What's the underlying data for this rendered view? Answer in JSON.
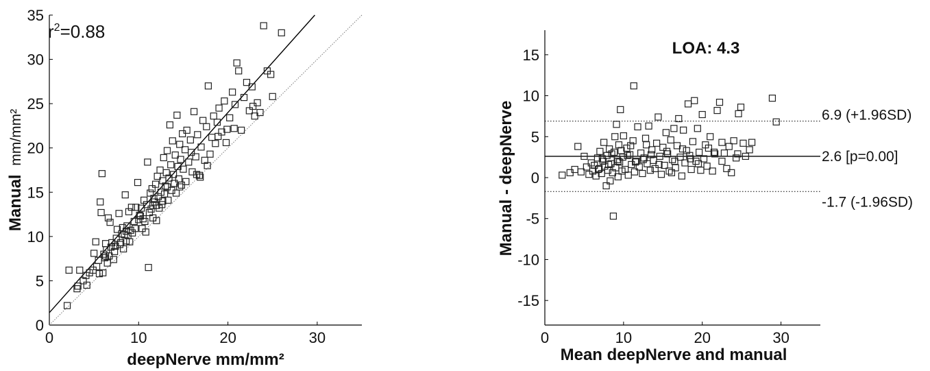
{
  "chart_data": [
    {
      "type": "scatter",
      "xlabel": "deepNerve mm/mm²",
      "ylabel_bold": "Manual",
      "ylabel_unit": "mm/mm²",
      "xlim": [
        0,
        35
      ],
      "ylim": [
        0,
        35
      ],
      "xticks": [
        0,
        10,
        20,
        30
      ],
      "yticks": [
        0,
        5,
        10,
        15,
        20,
        25,
        30,
        35
      ],
      "annotation": "r²=0.88",
      "fit_line": {
        "slope": 1.13,
        "intercept": 1.4
      },
      "identity_line": true,
      "points": [
        [
          2.0,
          2.2
        ],
        [
          2.2,
          6.2
        ],
        [
          3.1,
          4.1
        ],
        [
          3.2,
          4.4
        ],
        [
          3.4,
          6.2
        ],
        [
          3.8,
          5.0
        ],
        [
          4.1,
          5.6
        ],
        [
          4.2,
          4.5
        ],
        [
          4.5,
          5.9
        ],
        [
          4.9,
          6.2
        ],
        [
          5.0,
          8.1
        ],
        [
          5.2,
          9.4
        ],
        [
          5.3,
          6.6
        ],
        [
          5.5,
          7.3
        ],
        [
          5.6,
          5.8
        ],
        [
          5.7,
          13.9
        ],
        [
          5.8,
          12.7
        ],
        [
          5.9,
          17.1
        ],
        [
          6.0,
          5.9
        ],
        [
          6.1,
          8.0
        ],
        [
          6.2,
          7.6
        ],
        [
          6.3,
          9.2
        ],
        [
          6.4,
          8.5
        ],
        [
          6.5,
          7.0
        ],
        [
          6.6,
          12.1
        ],
        [
          6.7,
          7.8
        ],
        [
          6.8,
          11.6
        ],
        [
          6.9,
          8.8
        ],
        [
          7.0,
          9.3
        ],
        [
          7.2,
          7.4
        ],
        [
          7.3,
          8.3
        ],
        [
          7.5,
          9.8
        ],
        [
          7.6,
          10.8
        ],
        [
          7.8,
          12.6
        ],
        [
          7.9,
          9.1
        ],
        [
          8.1,
          10.3
        ],
        [
          8.2,
          11.0
        ],
        [
          8.3,
          8.6
        ],
        [
          8.4,
          10.2
        ],
        [
          8.5,
          14.7
        ],
        [
          8.6,
          9.5
        ],
        [
          8.7,
          11.2
        ],
        [
          8.8,
          10.1
        ],
        [
          8.9,
          12.8
        ],
        [
          9.0,
          9.4
        ],
        [
          9.1,
          10.7
        ],
        [
          9.2,
          13.3
        ],
        [
          9.3,
          10.4
        ],
        [
          9.5,
          11.7
        ],
        [
          9.7,
          13.3
        ],
        [
          9.9,
          16.1
        ],
        [
          10.0,
          11.9
        ],
        [
          10.1,
          12.4
        ],
        [
          10.3,
          13.2
        ],
        [
          10.4,
          10.9
        ],
        [
          10.5,
          12.0
        ],
        [
          10.6,
          14.1
        ],
        [
          10.7,
          11.7
        ],
        [
          10.8,
          10.5
        ],
        [
          11.0,
          18.4
        ],
        [
          11.1,
          6.5
        ],
        [
          11.2,
          12.7
        ],
        [
          11.3,
          14.9
        ],
        [
          11.4,
          13.1
        ],
        [
          11.5,
          15.4
        ],
        [
          11.6,
          12.1
        ],
        [
          11.7,
          14.3
        ],
        [
          11.8,
          13.9
        ],
        [
          11.9,
          15.9
        ],
        [
          12.0,
          13.5
        ],
        [
          12.1,
          16.8
        ],
        [
          12.2,
          14.5
        ],
        [
          12.3,
          13.2
        ],
        [
          12.4,
          17.5
        ],
        [
          12.5,
          15.0
        ],
        [
          12.6,
          13.6
        ],
        [
          12.7,
          16.3
        ],
        [
          12.8,
          18.9
        ],
        [
          12.9,
          14.8
        ],
        [
          13.0,
          15.7
        ],
        [
          13.1,
          17.2
        ],
        [
          13.2,
          19.7
        ],
        [
          13.3,
          14.1
        ],
        [
          13.4,
          16.6
        ],
        [
          13.5,
          22.6
        ],
        [
          13.6,
          18.1
        ],
        [
          13.7,
          15.2
        ],
        [
          13.8,
          20.8
        ],
        [
          13.9,
          17.0
        ],
        [
          14.0,
          16.0
        ],
        [
          14.1,
          19.2
        ],
        [
          14.2,
          14.9
        ],
        [
          14.3,
          23.7
        ],
        [
          14.4,
          17.9
        ],
        [
          14.5,
          16.5
        ],
        [
          14.6,
          20.4
        ],
        [
          14.7,
          18.7
        ],
        [
          14.8,
          15.8
        ],
        [
          14.9,
          21.6
        ],
        [
          15.0,
          17.6
        ],
        [
          15.2,
          19.8
        ],
        [
          15.3,
          16.2
        ],
        [
          15.4,
          22.0
        ],
        [
          15.6,
          18.4
        ],
        [
          15.8,
          20.9
        ],
        [
          16.0,
          17.3
        ],
        [
          16.2,
          24.1
        ],
        [
          16.4,
          19.0
        ],
        [
          16.6,
          21.5
        ],
        [
          16.8,
          16.9
        ],
        [
          17.0,
          20.1
        ],
        [
          17.2,
          23.1
        ],
        [
          17.4,
          18.6
        ],
        [
          17.6,
          22.4
        ],
        [
          17.8,
          27.0
        ],
        [
          18.0,
          19.3
        ],
        [
          18.2,
          21.2
        ],
        [
          18.4,
          23.6
        ],
        [
          18.6,
          20.5
        ],
        [
          18.8,
          22.9
        ],
        [
          19.0,
          24.5
        ],
        [
          19.3,
          21.8
        ],
        [
          19.6,
          25.3
        ],
        [
          19.9,
          22.1
        ],
        [
          20.2,
          23.4
        ],
        [
          20.5,
          26.3
        ],
        [
          20.8,
          24.9
        ],
        [
          21.0,
          29.6
        ],
        [
          21.2,
          28.7
        ],
        [
          21.5,
          22.0
        ],
        [
          21.8,
          25.7
        ],
        [
          22.1,
          27.4
        ],
        [
          22.4,
          24.2
        ],
        [
          22.7,
          26.9
        ],
        [
          23.0,
          23.6
        ],
        [
          23.3,
          25.1
        ],
        [
          23.6,
          24.0
        ],
        [
          24.0,
          33.8
        ],
        [
          24.4,
          28.7
        ],
        [
          24.8,
          28.3
        ],
        [
          25.0,
          25.8
        ],
        [
          26.0,
          33.0
        ],
        [
          16.5,
          17.0
        ],
        [
          12.0,
          11.8
        ],
        [
          10.2,
          12.3
        ],
        [
          8.6,
          10.6
        ],
        [
          7.4,
          8.9
        ],
        [
          6.3,
          7.8
        ],
        [
          14.6,
          15.6
        ],
        [
          18.9,
          21.3
        ],
        [
          20.7,
          22.2
        ],
        [
          15.9,
          19.5
        ],
        [
          13.2,
          15.6
        ],
        [
          11.6,
          13.5
        ],
        [
          9.6,
          10.9
        ],
        [
          17.7,
          18.0
        ],
        [
          19.8,
          20.6
        ],
        [
          22.8,
          24.7
        ],
        [
          16.9,
          16.7
        ],
        [
          12.7,
          14.0
        ],
        [
          10.9,
          13.6
        ],
        [
          8.0,
          9.3
        ]
      ]
    },
    {
      "type": "scatter",
      "title": "LOA: 4.3",
      "xlabel": "Mean deepNerve and manual",
      "ylabel": "Manual - deepNerve",
      "xlim": [
        0,
        35
      ],
      "ylim": [
        -18,
        18
      ],
      "xticks": [
        0,
        10,
        20,
        30
      ],
      "yticks": [
        -15,
        -10,
        -5,
        0,
        5,
        10,
        15
      ],
      "reference_lines": [
        {
          "value": 6.9,
          "label": "6.9 (+1.96SD)",
          "style": "dotted"
        },
        {
          "value": 2.6,
          "label": "2.6 [p=0.00]",
          "style": "solid"
        },
        {
          "value": -1.7,
          "label": "-1.7 (-1.96SD)",
          "style": "dotted"
        }
      ],
      "points": [
        [
          2.2,
          0.3
        ],
        [
          3.2,
          0.6
        ],
        [
          3.8,
          1.0
        ],
        [
          4.2,
          3.8
        ],
        [
          4.6,
          0.7
        ],
        [
          5.0,
          2.6
        ],
        [
          5.3,
          1.3
        ],
        [
          5.6,
          0.4
        ],
        [
          5.9,
          1.8
        ],
        [
          6.1,
          0.8
        ],
        [
          6.3,
          1.5
        ],
        [
          6.5,
          0.2
        ],
        [
          6.7,
          2.4
        ],
        [
          6.9,
          1.1
        ],
        [
          7.0,
          3.2
        ],
        [
          7.2,
          0.5
        ],
        [
          7.4,
          2.0
        ],
        [
          7.5,
          4.3
        ],
        [
          7.6,
          1.4
        ],
        [
          7.8,
          -1.0
        ],
        [
          7.9,
          2.7
        ],
        [
          8.0,
          0.9
        ],
        [
          8.2,
          3.5
        ],
        [
          8.3,
          -0.4
        ],
        [
          8.4,
          1.7
        ],
        [
          8.5,
          2.9
        ],
        [
          8.6,
          0.6
        ],
        [
          8.7,
          -4.7
        ],
        [
          8.8,
          3.1
        ],
        [
          8.9,
          5.0
        ],
        [
          9.0,
          1.2
        ],
        [
          9.1,
          6.5
        ],
        [
          9.2,
          2.2
        ],
        [
          9.3,
          0.1
        ],
        [
          9.4,
          4.0
        ],
        [
          9.5,
          1.9
        ],
        [
          9.6,
          8.3
        ],
        [
          9.7,
          3.3
        ],
        [
          9.8,
          0.8
        ],
        [
          9.9,
          2.5
        ],
        [
          10.0,
          5.1
        ],
        [
          10.2,
          1.0
        ],
        [
          10.4,
          3.6
        ],
        [
          10.6,
          0.3
        ],
        [
          10.8,
          2.8
        ],
        [
          11.0,
          1.6
        ],
        [
          11.2,
          4.5
        ],
        [
          11.3,
          11.2
        ],
        [
          11.4,
          0.7
        ],
        [
          11.6,
          2.0
        ],
        [
          11.8,
          6.2
        ],
        [
          12.0,
          1.3
        ],
        [
          12.2,
          3.0
        ],
        [
          12.4,
          0.5
        ],
        [
          12.6,
          2.4
        ],
        [
          12.8,
          4.8
        ],
        [
          13.0,
          1.7
        ],
        [
          13.2,
          6.3
        ],
        [
          13.4,
          0.9
        ],
        [
          13.6,
          3.4
        ],
        [
          13.8,
          2.1
        ],
        [
          14.0,
          1.1
        ],
        [
          14.2,
          4.2
        ],
        [
          14.4,
          7.4
        ],
        [
          14.6,
          2.6
        ],
        [
          14.8,
          0.4
        ],
        [
          15.0,
          3.7
        ],
        [
          15.2,
          1.5
        ],
        [
          15.4,
          5.5
        ],
        [
          15.6,
          2.9
        ],
        [
          15.8,
          0.8
        ],
        [
          16.0,
          4.6
        ],
        [
          16.2,
          2.2
        ],
        [
          16.4,
          6.0
        ],
        [
          16.6,
          1.2
        ],
        [
          16.8,
          3.9
        ],
        [
          17.0,
          7.2
        ],
        [
          17.2,
          2.5
        ],
        [
          17.4,
          0.2
        ],
        [
          17.6,
          5.8
        ],
        [
          17.8,
          1.8
        ],
        [
          18.0,
          3.3
        ],
        [
          18.2,
          9.0
        ],
        [
          18.4,
          2.7
        ],
        [
          18.6,
          1.0
        ],
        [
          18.8,
          4.4
        ],
        [
          19.0,
          9.4
        ],
        [
          19.2,
          2.0
        ],
        [
          19.4,
          6.0
        ],
        [
          19.6,
          3.1
        ],
        [
          19.8,
          0.9
        ],
        [
          20.0,
          7.7
        ],
        [
          20.2,
          2.3
        ],
        [
          20.4,
          4.0
        ],
        [
          20.6,
          1.4
        ],
        [
          20.8,
          3.6
        ],
        [
          21.0,
          5.0
        ],
        [
          21.3,
          0.8
        ],
        [
          21.6,
          2.9
        ],
        [
          21.9,
          8.2
        ],
        [
          22.2,
          9.2
        ],
        [
          22.5,
          4.3
        ],
        [
          22.8,
          3.0
        ],
        [
          23.1,
          1.1
        ],
        [
          23.4,
          3.8
        ],
        [
          23.7,
          0.6
        ],
        [
          24.0,
          4.5
        ],
        [
          24.3,
          2.4
        ],
        [
          24.6,
          7.8
        ],
        [
          24.9,
          8.6
        ],
        [
          25.2,
          4.2
        ],
        [
          25.5,
          2.6
        ],
        [
          26.0,
          3.4
        ],
        [
          26.3,
          4.3
        ],
        [
          28.9,
          9.7
        ],
        [
          29.4,
          6.8
        ],
        [
          6.8,
          1.0
        ],
        [
          7.3,
          2.3
        ],
        [
          8.1,
          1.6
        ],
        [
          9.3,
          2.0
        ],
        [
          10.5,
          2.7
        ],
        [
          11.5,
          1.9
        ],
        [
          12.5,
          2.2
        ],
        [
          13.5,
          2.8
        ],
        [
          14.5,
          1.6
        ],
        [
          15.5,
          3.2
        ],
        [
          16.5,
          2.0
        ],
        [
          17.5,
          3.5
        ],
        [
          18.5,
          2.3
        ],
        [
          19.5,
          1.7
        ],
        [
          21.5,
          3.1
        ],
        [
          22.5,
          2.0
        ],
        [
          24.5,
          2.9
        ],
        [
          16.1,
          0.6
        ],
        [
          12.9,
          4.0
        ],
        [
          10.9,
          3.9
        ]
      ]
    }
  ]
}
